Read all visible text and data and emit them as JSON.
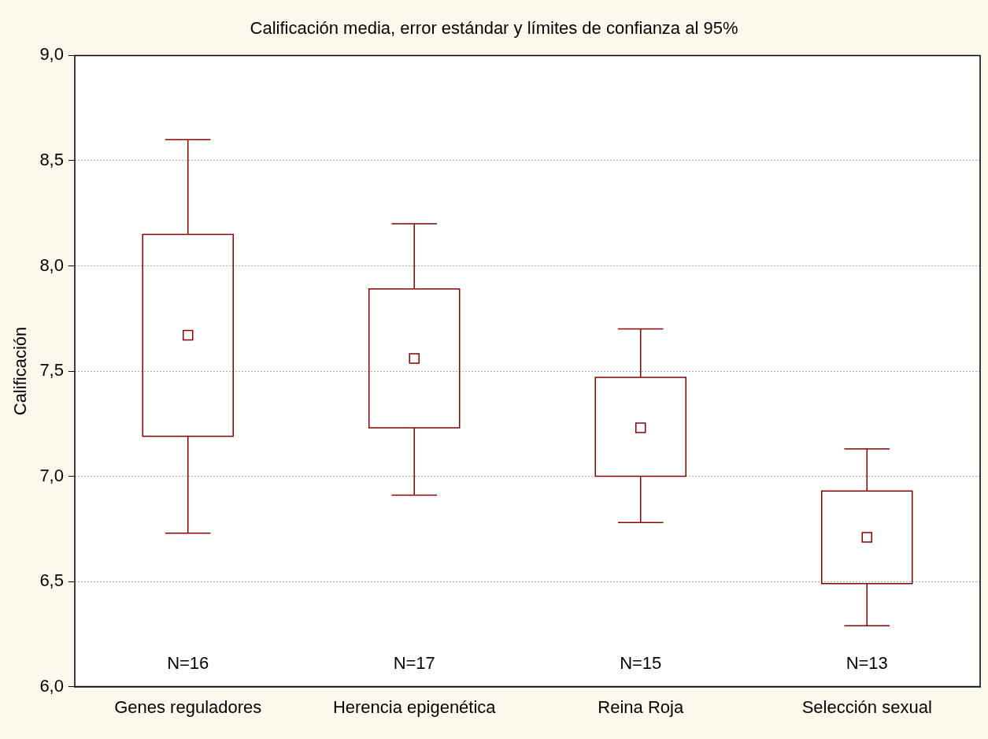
{
  "chart_data": {
    "type": "box",
    "title": "Calificación media, error estándar y límites de confianza al 95%",
    "ylabel": "Calificación",
    "categories": [
      "Genes reguladores",
      "Herencia epigenética",
      "Reina Roja",
      "Selección sexual"
    ],
    "boxes": [
      {
        "low": 6.73,
        "q1": 7.19,
        "median": 7.67,
        "q3": 8.15,
        "high": 8.6
      },
      {
        "low": 6.91,
        "q1": 7.23,
        "median": 7.56,
        "q3": 7.89,
        "high": 8.2
      },
      {
        "low": 6.78,
        "q1": 7.0,
        "median": 7.23,
        "q3": 7.47,
        "high": 7.7
      },
      {
        "low": 6.29,
        "q1": 6.49,
        "median": 6.71,
        "q3": 6.93,
        "high": 7.13
      }
    ],
    "color": "#8b0000",
    "marker": "square",
    "grid": "y",
    "legend": false,
    "ylim": [
      6,
      9
    ],
    "yticks": [
      {
        "value": 6,
        "label": "6,0"
      },
      {
        "value": 6.5,
        "label": "6,5"
      },
      {
        "value": 7,
        "label": "7,0"
      },
      {
        "value": 7.5,
        "label": "7,5"
      },
      {
        "value": 8,
        "label": "8,0"
      },
      {
        "value": 8.5,
        "label": "8,5"
      },
      {
        "value": 9,
        "label": "9,0"
      }
    ],
    "annotations": [
      "N=16",
      "N=17",
      "N=15",
      "N=13"
    ]
  }
}
